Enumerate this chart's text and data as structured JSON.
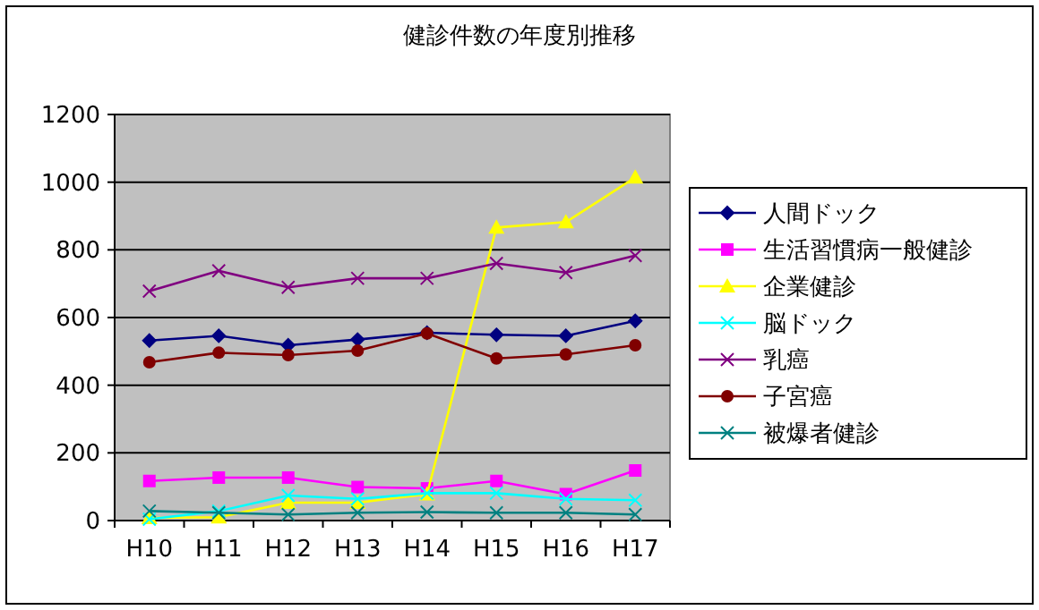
{
  "chart_data": {
    "type": "line",
    "title": "健診件数の年度別推移",
    "categories": [
      "H10",
      "H11",
      "H12",
      "H13",
      "H14",
      "H15",
      "H16",
      "H17"
    ],
    "series": [
      {
        "name": "人間ドック",
        "color": "#000080",
        "marker": "diamond",
        "values": [
          532,
          546,
          518,
          535,
          555,
          549,
          546,
          590
        ]
      },
      {
        "name": "生活習慣病一般健診",
        "color": "#ff00ff",
        "marker": "square",
        "values": [
          117,
          127,
          127,
          99,
          95,
          117,
          78,
          148
        ]
      },
      {
        "name": "企業健診",
        "color": "#ffff00",
        "marker": "triangle",
        "values": [
          8,
          10,
          53,
          53,
          78,
          866,
          882,
          1014
        ]
      },
      {
        "name": "脳ドック",
        "color": "#00ffff",
        "marker": "cross",
        "values": [
          4,
          28,
          74,
          64,
          81,
          81,
          64,
          60
        ]
      },
      {
        "name": "乳癌",
        "color": "#800080",
        "marker": "cross",
        "values": [
          678,
          738,
          689,
          716,
          716,
          760,
          733,
          783
        ]
      },
      {
        "name": "子宮癌",
        "color": "#800000",
        "marker": "circle",
        "values": [
          468,
          496,
          489,
          502,
          553,
          479,
          491,
          518
        ]
      },
      {
        "name": "被爆者健診",
        "color": "#008080",
        "marker": "cross",
        "values": [
          28,
          23,
          18,
          23,
          25,
          23,
          23,
          18
        ]
      }
    ],
    "ylim": [
      0,
      1200
    ],
    "yticks": [
      0,
      200,
      400,
      600,
      800,
      1000,
      1200
    ],
    "grid": "y",
    "legend": "right"
  }
}
